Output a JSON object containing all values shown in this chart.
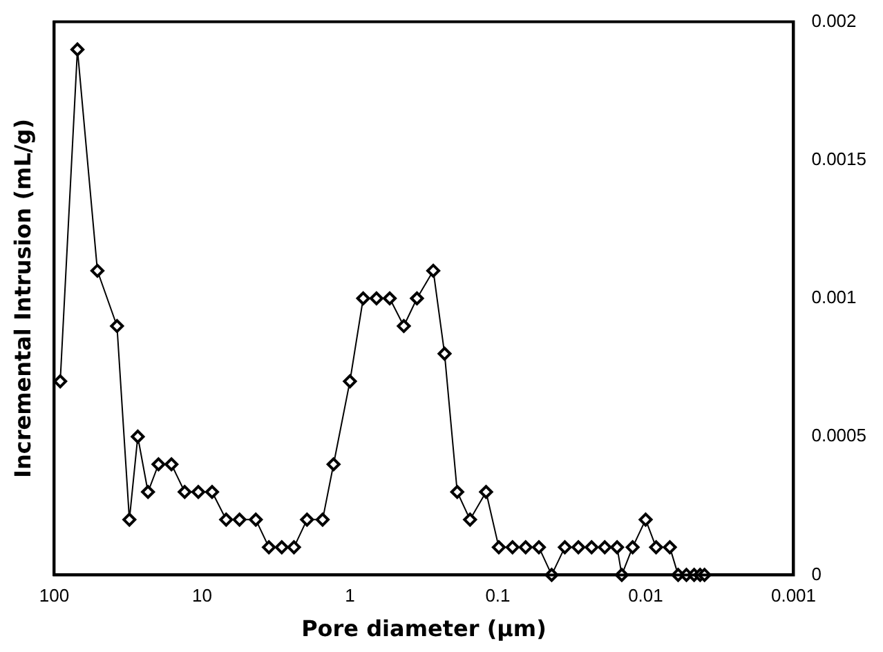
{
  "chart_data": {
    "type": "line",
    "xlabel": "Pore diameter (μm)",
    "ylabel": "Incremental Intrusion (mL/g)",
    "log": "x",
    "grid": false,
    "legend": false,
    "marker": "diamond",
    "line_style": "solid",
    "xlim": [
      100,
      0.001
    ],
    "xticks": [
      100,
      10,
      1,
      0.1,
      0.01,
      0.001
    ],
    "ylim": [
      0,
      0.002
    ],
    "yticks": [
      0,
      0.0005,
      0.001,
      0.0015,
      0.002
    ],
    "series": [
      {
        "color": "#000000",
        "x": [
          91,
          69.6,
          51,
          37.6,
          31,
          27.2,
          23.2,
          19.7,
          16.1,
          13.1,
          10.6,
          8.55,
          6.87,
          5.58,
          4.33,
          3.53,
          2.89,
          2.39,
          1.95,
          1.53,
          1.29,
          1.0,
          0.813,
          0.661,
          0.538,
          0.432,
          0.352,
          0.273,
          0.229,
          0.188,
          0.154,
          0.12,
          0.0984,
          0.0795,
          0.0648,
          0.0527,
          0.0432,
          0.0352,
          0.0285,
          0.0232,
          0.0189,
          0.0156,
          0.0145,
          0.01225,
          0.01,
          0.0085,
          0.00686,
          0.00603,
          0.0053,
          0.0047,
          0.00428,
          0.004
        ],
        "values": [
          0.0007,
          0.0019,
          0.0011,
          0.0009,
          0.0002,
          0.0005,
          0.0003,
          0.0004,
          0.0004,
          0.0003,
          0.0003,
          0.0003,
          0.0002,
          0.0002,
          0.0002,
          0.0001,
          0.0001,
          0.0001,
          0.0002,
          0.0002,
          0.0004,
          0.0007,
          0.001,
          0.001,
          0.001,
          0.0009,
          0.001,
          0.0011,
          0.0008,
          0.0003,
          0.0002,
          0.0003,
          0.0001,
          0.0001,
          0.0001,
          0.0001,
          0,
          0.0001,
          0.0001,
          0.0001,
          0.0001,
          0.0001,
          0,
          0.0001,
          0.0002,
          0.0001,
          0.0001,
          0,
          0,
          0,
          0,
          0
        ]
      }
    ]
  }
}
